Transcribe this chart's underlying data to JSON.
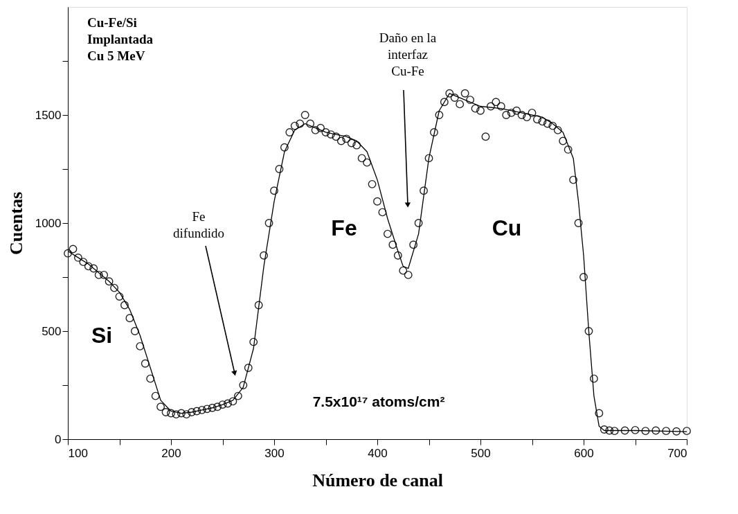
{
  "chart_data": {
    "type": "scatter",
    "xlabel": "Número de canal",
    "ylabel": "Cuentas",
    "xlim": [
      100,
      700
    ],
    "ylim": [
      0,
      2000
    ],
    "xticks": [
      100,
      {
        "value": 150,
        "label": null
      },
      200,
      {
        "value": 250,
        "label": null
      },
      300,
      {
        "value": 350,
        "label": null
      },
      400,
      {
        "value": 450,
        "label": null
      },
      500,
      {
        "value": 550,
        "label": null
      },
      600,
      {
        "value": 650,
        "label": null
      },
      700
    ],
    "yticks": [
      0,
      {
        "value": 250,
        "label": null
      },
      500,
      {
        "value": 750,
        "label": null
      },
      1000,
      {
        "value": 1250,
        "label": null
      },
      1500,
      {
        "value": 1750,
        "label": null
      }
    ],
    "grid": false,
    "line_style": "solid",
    "annotations": [
      "Cu-Fe/Si\nImplantada\nCu  5 MeV",
      "Fe\ndifundido",
      "Daño en la\ninterfaz\nCu-Fe",
      "Si",
      "Fe",
      "Cu",
      "7.5x10¹⁷ atoms/cm²"
    ],
    "series": [
      {
        "color": "#000000",
        "marker": "circle",
        "x": [
          100,
          105,
          110,
          115,
          120,
          125,
          130,
          135,
          140,
          145,
          150,
          155,
          160,
          165,
          170,
          175,
          180,
          185,
          190,
          195,
          200,
          205,
          210,
          215,
          220,
          225,
          230,
          235,
          240,
          245,
          250,
          255,
          260,
          265,
          270,
          275,
          280,
          285,
          290,
          295,
          300,
          305,
          310,
          315,
          320,
          325,
          330,
          335,
          340,
          345,
          350,
          355,
          360,
          365,
          370,
          375,
          380,
          385,
          390,
          395,
          400,
          405,
          410,
          415,
          420,
          425,
          430,
          435,
          440,
          445,
          450,
          455,
          460,
          465,
          470,
          475,
          480,
          485,
          490,
          495,
          500,
          505,
          510,
          515,
          520,
          525,
          530,
          535,
          540,
          545,
          550,
          555,
          560,
          565,
          570,
          575,
          580,
          585,
          590,
          595,
          600,
          605,
          610,
          615,
          620,
          625,
          630,
          640,
          650,
          660,
          670,
          680,
          690,
          700
        ],
        "values": [
          860,
          880,
          840,
          820,
          800,
          790,
          760,
          760,
          730,
          700,
          660,
          620,
          560,
          500,
          430,
          350,
          280,
          200,
          150,
          125,
          120,
          115,
          120,
          115,
          125,
          130,
          135,
          140,
          145,
          150,
          160,
          165,
          175,
          200,
          250,
          330,
          450,
          620,
          850,
          1000,
          1150,
          1250,
          1350,
          1420,
          1450,
          1460,
          1500,
          1460,
          1430,
          1440,
          1420,
          1410,
          1400,
          1380,
          1390,
          1370,
          1360,
          1300,
          1280,
          1180,
          1100,
          1050,
          950,
          900,
          850,
          780,
          760,
          900,
          1000,
          1150,
          1300,
          1420,
          1500,
          1560,
          1600,
          1580,
          1550,
          1600,
          1570,
          1530,
          1520,
          1400,
          1540,
          1560,
          1540,
          1500,
          1510,
          1520,
          1500,
          1490,
          1510,
          1480,
          1470,
          1460,
          1450,
          1430,
          1380,
          1340,
          1200,
          1000,
          750,
          500,
          280,
          120,
          45,
          40,
          38,
          40,
          42,
          38,
          40,
          38,
          36,
          38
        ]
      },
      {
        "type": "line",
        "color": "#000000",
        "x": [
          100,
          110,
          120,
          130,
          140,
          150,
          160,
          170,
          180,
          190,
          200,
          210,
          220,
          230,
          240,
          250,
          260,
          270,
          280,
          290,
          300,
          310,
          320,
          330,
          340,
          350,
          360,
          370,
          380,
          390,
          400,
          410,
          420,
          425,
          430,
          440,
          450,
          460,
          470,
          480,
          490,
          500,
          520,
          540,
          560,
          570,
          580,
          590,
          595,
          600,
          605,
          610,
          615,
          620,
          650,
          700
        ],
        "values": [
          870,
          840,
          810,
          770,
          730,
          680,
          600,
          480,
          330,
          180,
          130,
          120,
          125,
          135,
          145,
          160,
          180,
          240,
          420,
          800,
          1100,
          1330,
          1430,
          1460,
          1440,
          1420,
          1410,
          1400,
          1380,
          1330,
          1200,
          1020,
          870,
          800,
          790,
          950,
          1300,
          1520,
          1600,
          1580,
          1560,
          1540,
          1530,
          1510,
          1490,
          1460,
          1420,
          1300,
          1100,
          850,
          500,
          200,
          60,
          40,
          40,
          35
        ]
      }
    ]
  }
}
